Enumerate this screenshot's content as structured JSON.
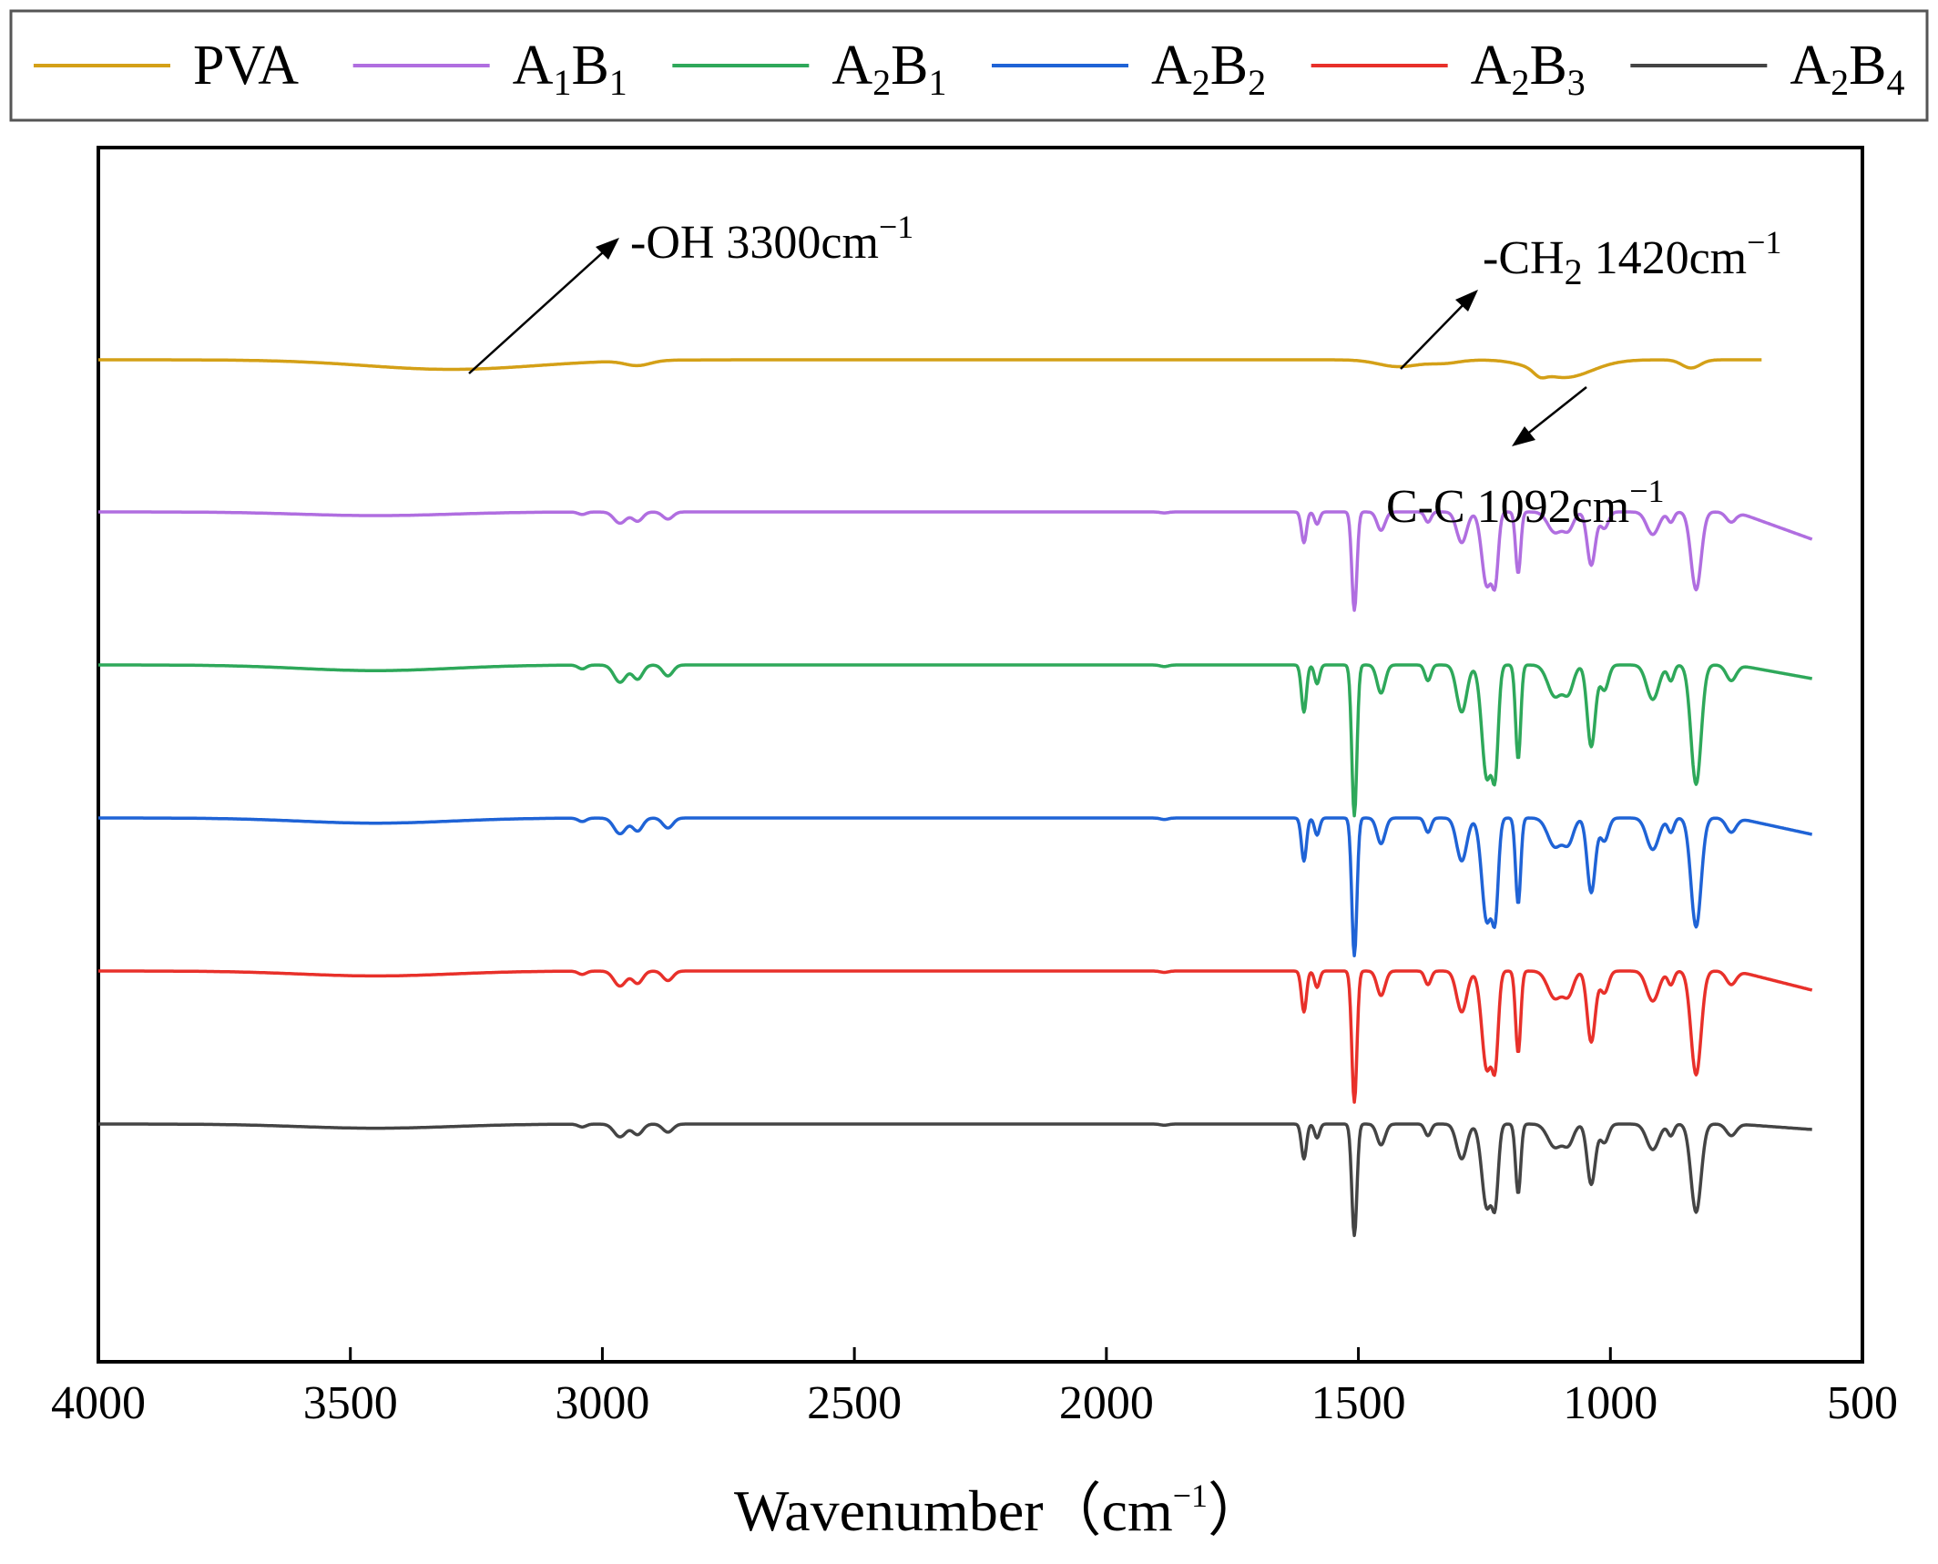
{
  "chart_data": {
    "type": "line",
    "title": "",
    "xlabel": "Wavenumber（cm",
    "xlabel_sup": "−1",
    "xlabel_close": "）",
    "ylabel": "",
    "xlim": [
      4000,
      500
    ],
    "x_reversed": true,
    "x_ticks": [
      "4000",
      "3500",
      "3000",
      "2500",
      "2000",
      "1500",
      "1000",
      "500"
    ],
    "x_tick_values": [
      4000,
      3500,
      3000,
      2500,
      2000,
      1500,
      1000,
      500
    ],
    "y_ticks_shown": false,
    "grid": false,
    "legend_position": "top",
    "series": [
      {
        "name": "PVA",
        "name_main": "PVA",
        "sub1": "",
        "main2": "",
        "sub2": "",
        "color": "#d4a017",
        "x_range": [
          4000,
          700
        ],
        "baseline": 0,
        "depth_scale": 1,
        "features": [
          {
            "center": 3300,
            "width": 170,
            "depth": 0.35
          },
          {
            "center": 2930,
            "width": 25,
            "depth": 0.18
          },
          {
            "center": 1420,
            "width": 40,
            "depth": 0.25
          },
          {
            "center": 1330,
            "width": 30,
            "depth": 0.12
          },
          {
            "center": 1092,
            "width": 55,
            "depth": 0.65
          },
          {
            "center": 1140,
            "width": 12,
            "depth": 0.2
          },
          {
            "center": 840,
            "width": 18,
            "depth": 0.3
          }
        ]
      },
      {
        "name": "A1B1",
        "name_main": "A",
        "sub1": "1",
        "main2": "B",
        "sub2": "1",
        "color": "#b06ee0",
        "x_range": [
          4000,
          600
        ],
        "baseline": 0,
        "depth_scale": 0.75,
        "end_drop": 1.0,
        "features": []
      },
      {
        "name": "A2B1",
        "name_main": "A",
        "sub1": "2",
        "main2": "B",
        "sub2": "1",
        "color": "#2ea85a",
        "x_range": [
          4000,
          600
        ],
        "baseline": 0,
        "depth_scale": 1.15,
        "end_drop": 0.5,
        "features": []
      },
      {
        "name": "A2B2",
        "name_main": "A",
        "sub1": "2",
        "main2": "B",
        "sub2": "2",
        "color": "#1f63d6",
        "x_range": [
          4000,
          600
        ],
        "baseline": 0,
        "depth_scale": 1.05,
        "end_drop": 0.6,
        "features": []
      },
      {
        "name": "A2B3",
        "name_main": "A",
        "sub1": "2",
        "main2": "B",
        "sub2": "3",
        "color": "#e8302a",
        "x_range": [
          4000,
          600
        ],
        "baseline": 0,
        "depth_scale": 1.0,
        "end_drop": 0.7,
        "features": []
      },
      {
        "name": "A2B4",
        "name_main": "A",
        "sub1": "2",
        "main2": "B",
        "sub2": "4",
        "color": "#444444",
        "x_range": [
          4000,
          600
        ],
        "baseline": 0,
        "depth_scale": 0.85,
        "end_drop": 0.2,
        "features": []
      }
    ],
    "common_features": [
      {
        "center": 3450,
        "width": 150,
        "depth": 0.18
      },
      {
        "center": 3040,
        "width": 8,
        "depth": 0.12
      },
      {
        "center": 2965,
        "width": 12,
        "depth": 0.55
      },
      {
        "center": 2930,
        "width": 10,
        "depth": 0.45
      },
      {
        "center": 2870,
        "width": 10,
        "depth": 0.35
      },
      {
        "center": 1885,
        "width": 8,
        "depth": 0.05
      },
      {
        "center": 1608,
        "width": 5,
        "depth": 1.5
      },
      {
        "center": 1582,
        "width": 5,
        "depth": 0.6
      },
      {
        "center": 1508,
        "width": 5,
        "depth": 4.8
      },
      {
        "center": 1455,
        "width": 8,
        "depth": 0.9
      },
      {
        "center": 1362,
        "width": 6,
        "depth": 0.5
      },
      {
        "center": 1295,
        "width": 10,
        "depth": 1.5
      },
      {
        "center": 1245,
        "width": 10,
        "depth": 3.6
      },
      {
        "center": 1228,
        "width": 6,
        "depth": 2.8
      },
      {
        "center": 1183,
        "width": 5,
        "depth": 3.0
      },
      {
        "center": 1110,
        "width": 14,
        "depth": 1.0
      },
      {
        "center": 1083,
        "width": 10,
        "depth": 0.8
      },
      {
        "center": 1038,
        "width": 8,
        "depth": 2.6
      },
      {
        "center": 1012,
        "width": 8,
        "depth": 0.8
      },
      {
        "center": 916,
        "width": 12,
        "depth": 1.1
      },
      {
        "center": 880,
        "width": 6,
        "depth": 0.5
      },
      {
        "center": 830,
        "width": 10,
        "depth": 3.8
      },
      {
        "center": 760,
        "width": 10,
        "depth": 0.5
      }
    ],
    "annotations": [
      {
        "text": "-OH 3300cm",
        "sup": "−1",
        "sub_text": "",
        "text2": ""
      },
      {
        "text": "-CH",
        "sup": "−1",
        "sub_text": "2",
        "text2": " 1420cm"
      },
      {
        "text": "C-C 1092cm",
        "sup": "−1",
        "sub_text": "",
        "text2": ""
      }
    ]
  }
}
